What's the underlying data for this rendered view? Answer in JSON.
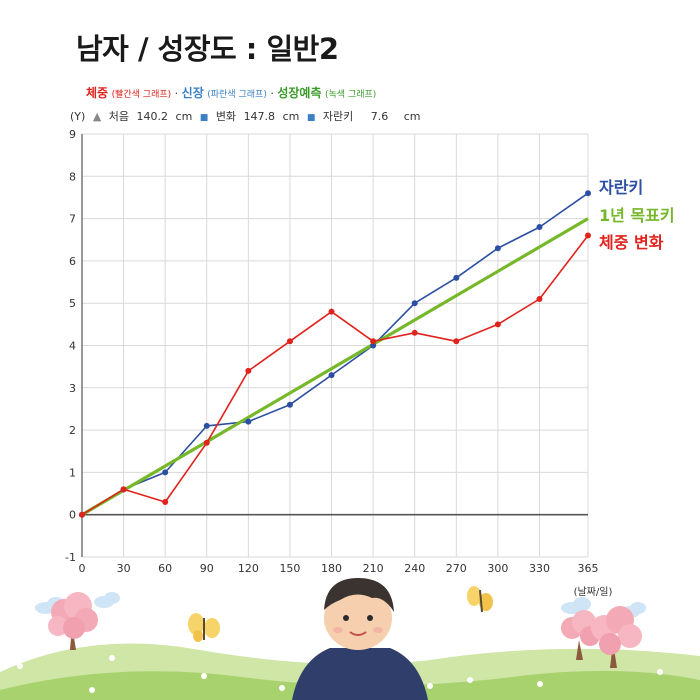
{
  "title": "남자 / 성장도 : 일반2",
  "legend_text": {
    "weight_label": "체중",
    "weight_note": "(빨간색 그래프)",
    "height_label": "신장",
    "height_note": "(파란색 그래프)",
    "forecast_label": "성장예측",
    "forecast_note": "(녹색 그래프)",
    "separator": "·"
  },
  "info": {
    "y_unit": "(Y)",
    "first_label": "처음",
    "first_value": "140.2",
    "first_unit": "cm",
    "change_label": "변화",
    "change_value": "147.8",
    "change_unit": "cm",
    "growth_label": "자란키",
    "growth_value": "7.6",
    "growth_unit": "cm"
  },
  "colors": {
    "height": "#2c4fa3",
    "weight": "#e0231c",
    "forecast": "#76b82a",
    "grid": "#d9d9d9",
    "axis": "#444444"
  },
  "chart_data": {
    "type": "line",
    "x": [
      0,
      30,
      60,
      90,
      120,
      150,
      180,
      210,
      240,
      270,
      300,
      330,
      365
    ],
    "xlim": [
      0,
      365
    ],
    "ylim": [
      -1,
      9
    ],
    "x_ticks": [
      0,
      30,
      60,
      90,
      120,
      150,
      180,
      210,
      240,
      270,
      300,
      330,
      365
    ],
    "y_ticks": [
      -1,
      0,
      1,
      2,
      3,
      4,
      5,
      6,
      7,
      8,
      9
    ],
    "x_unit_label": "(날짜/일)",
    "grid": true,
    "legend_position": "right",
    "series": [
      {
        "name": "자란키",
        "color_key": "height",
        "markers": true,
        "x": [
          0,
          30,
          60,
          90,
          120,
          150,
          180,
          210,
          240,
          270,
          300,
          330,
          365
        ],
        "values": [
          0,
          0.6,
          1.0,
          2.1,
          2.2,
          2.6,
          3.3,
          4.0,
          5.0,
          5.6,
          6.3,
          6.8,
          7.6
        ]
      },
      {
        "name": "1년 목표키",
        "color_key": "forecast",
        "markers": false,
        "x": [
          0,
          365
        ],
        "values": [
          0,
          7.0
        ]
      },
      {
        "name": "체중 변화",
        "color_key": "weight",
        "markers": true,
        "x": [
          0,
          30,
          60,
          90,
          120,
          150,
          180,
          210,
          240,
          270,
          300,
          330,
          365
        ],
        "values": [
          0,
          0.6,
          0.3,
          1.7,
          3.4,
          4.1,
          4.8,
          4.1,
          4.3,
          4.1,
          4.5,
          5.1,
          6.6
        ]
      }
    ]
  }
}
